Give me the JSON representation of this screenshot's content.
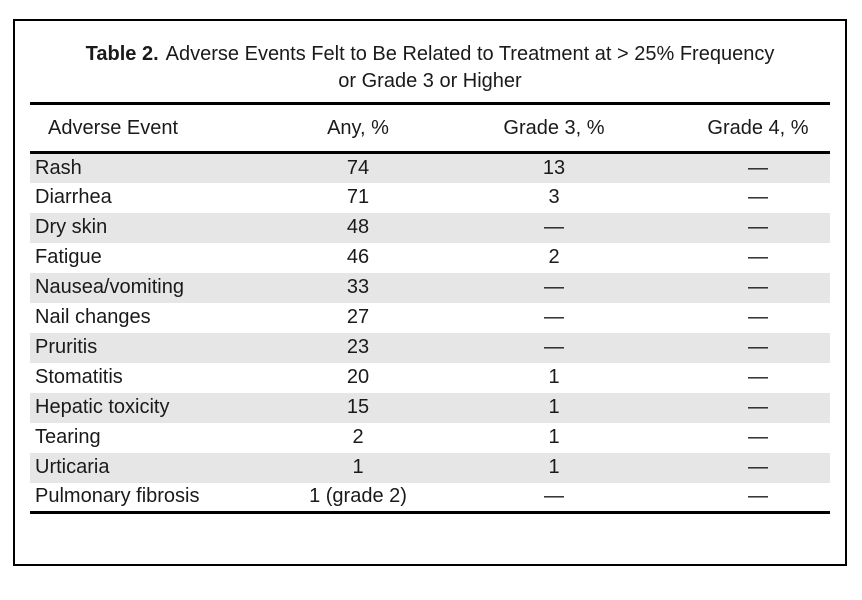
{
  "caption": {
    "label": "Table 2.",
    "line1": "Adverse Events Felt to Be Related to Treatment at > 25% Frequency",
    "line2": "or Grade 3 or Higher"
  },
  "table": {
    "columns": [
      "Adverse Event",
      "Any, %",
      "Grade 3, %",
      "Grade 4, %"
    ],
    "rows": [
      {
        "event": "Rash",
        "any": "74",
        "grade3": "13",
        "grade4": "—"
      },
      {
        "event": "Diarrhea",
        "any": "71",
        "grade3": "3",
        "grade4": "—"
      },
      {
        "event": "Dry skin",
        "any": "48",
        "grade3": "—",
        "grade4": "—"
      },
      {
        "event": "Fatigue",
        "any": "46",
        "grade3": "2",
        "grade4": "—"
      },
      {
        "event": "Nausea/vomiting",
        "any": "33",
        "grade3": "—",
        "grade4": "—"
      },
      {
        "event": "Nail changes",
        "any": "27",
        "grade3": "—",
        "grade4": "—"
      },
      {
        "event": "Pruritis",
        "any": "23",
        "grade3": "—",
        "grade4": "—"
      },
      {
        "event": "Stomatitis",
        "any": "20",
        "grade3": "1",
        "grade4": "—"
      },
      {
        "event": "Hepatic toxicity",
        "any": "15",
        "grade3": "1",
        "grade4": "—"
      },
      {
        "event": "Tearing",
        "any": "2",
        "grade3": "1",
        "grade4": "—"
      },
      {
        "event": "Urticaria",
        "any": "1",
        "grade3": "1",
        "grade4": "—"
      },
      {
        "event": "Pulmonary fibrosis",
        "any": "1 (grade 2)",
        "grade3": "—",
        "grade4": "—"
      }
    ]
  },
  "colors": {
    "row_shade": "#e6e6e6",
    "text": "#1a1a1a",
    "rule": "#000000",
    "background": "#ffffff"
  }
}
